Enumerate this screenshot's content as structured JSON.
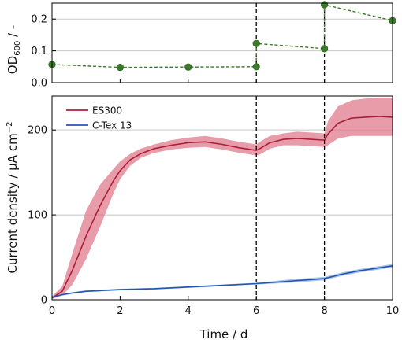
{
  "chart_data": [
    {
      "id": "od_panel",
      "type": "line",
      "ylabel_main": "OD",
      "ylabel_sub": "600",
      "ylabel_suffix": " / -",
      "xlim": [
        0,
        10
      ],
      "ylim": [
        0,
        0.25
      ],
      "yticks": [
        "0.0",
        "0.1",
        "0.2"
      ],
      "ytick_values": [
        0,
        0.1,
        0.2
      ],
      "grid": true,
      "vlines": [
        6,
        8
      ],
      "series": [
        {
          "color": "#3a7a28",
          "x": [
            0,
            2,
            4,
            6,
            6,
            8,
            8,
            10
          ],
          "y": [
            0.057,
            0.048,
            0.049,
            0.05,
            0.123,
            0.107,
            0.245,
            0.195
          ]
        }
      ]
    },
    {
      "id": "current_panel",
      "type": "line",
      "xlabel": "Time / d",
      "ylabel": "Current density / µA cm",
      "ylabel_sup": "−2",
      "xlim": [
        0,
        10
      ],
      "ylim": [
        0,
        240
      ],
      "xticks": [
        "0",
        "2",
        "4",
        "6",
        "8",
        "10"
      ],
      "xtick_values": [
        0,
        2,
        4,
        6,
        8,
        10
      ],
      "yticks": [
        "0",
        "100",
        "200"
      ],
      "ytick_values": [
        0,
        100,
        200
      ],
      "grid": true,
      "vlines": [
        6,
        8
      ],
      "legend_position": "top-left",
      "series": [
        {
          "name": "ES300",
          "color": "#a8203a",
          "band_color": "#e07a8c",
          "x": [
            0,
            0.3,
            0.6,
            1.0,
            1.4,
            1.8,
            2.0,
            2.3,
            2.6,
            3.0,
            3.5,
            4.0,
            4.5,
            5.0,
            5.5,
            6.0,
            6.1,
            6.4,
            6.8,
            7.2,
            7.6,
            8.0,
            8.1,
            8.4,
            8.8,
            9.2,
            9.6,
            10.0
          ],
          "y": [
            2,
            10,
            35,
            75,
            110,
            140,
            152,
            165,
            172,
            178,
            182,
            185,
            186,
            183,
            179,
            176,
            178,
            185,
            189,
            190,
            189,
            188,
            195,
            208,
            214,
            215,
            216,
            215
          ],
          "lower": [
            1,
            5,
            18,
            48,
            85,
            125,
            142,
            158,
            167,
            173,
            177,
            179,
            180,
            177,
            173,
            170,
            171,
            178,
            182,
            182,
            181,
            180,
            182,
            190,
            193,
            193,
            193,
            193
          ],
          "upper": [
            4,
            16,
            55,
            105,
            135,
            154,
            163,
            172,
            178,
            183,
            188,
            191,
            193,
            190,
            186,
            183,
            186,
            193,
            196,
            198,
            197,
            196,
            210,
            228,
            235,
            237,
            238,
            238
          ]
        },
        {
          "name": "C-Tex 13",
          "color": "#2456b0",
          "band_color": "#8fb0e6",
          "x": [
            0,
            0.3,
            0.6,
            1.0,
            1.5,
            2.0,
            3.0,
            4.0,
            5.0,
            6.0,
            7.0,
            8.0,
            8.5,
            9.0,
            9.5,
            10.0
          ],
          "y": [
            3,
            6,
            8,
            10,
            11,
            12,
            13,
            15,
            17,
            19,
            22,
            25,
            30,
            34,
            37,
            40
          ],
          "lower": [
            2,
            5,
            7,
            9,
            10,
            11,
            12,
            14,
            16,
            18,
            20,
            23,
            28,
            32,
            35,
            38
          ],
          "upper": [
            4,
            7,
            9,
            11,
            12,
            13,
            14,
            16,
            18,
            20,
            24,
            27,
            32,
            36,
            39,
            42
          ]
        }
      ]
    }
  ]
}
